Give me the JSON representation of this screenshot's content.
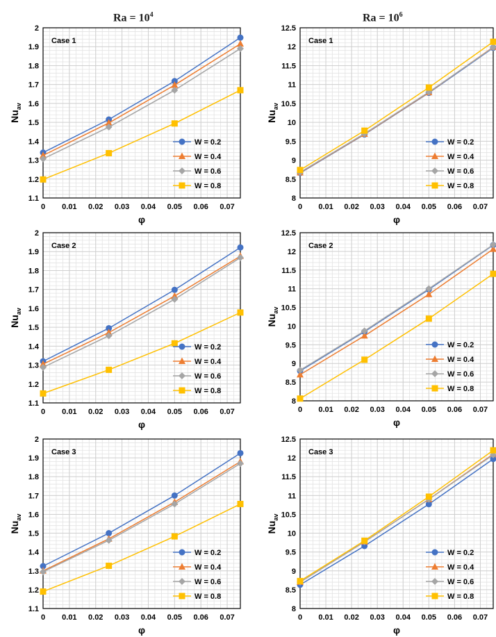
{
  "titles": {
    "left": {
      "base": "Ra = 10",
      "exp": "4"
    },
    "right": {
      "base": "Ra = 10",
      "exp": "6"
    }
  },
  "colors": {
    "W = 0.2": "#4472C4",
    "W = 0.4": "#ED7D31",
    "W = 0.6": "#A5A5A5",
    "W = 0.8": "#FFC000"
  },
  "markers": {
    "W = 0.2": "circle",
    "W = 0.4": "triangle",
    "W = 0.6": "diamond",
    "W = 0.8": "square"
  },
  "chart_data": [
    {
      "type": "line",
      "case": "Case 1",
      "ra": "Ra = 10^4",
      "xlabel": "φ",
      "ylabel": {
        "base": "Nu",
        "sub": "av"
      },
      "xlim": [
        0,
        0.075
      ],
      "ylim": [
        1.1,
        2.0
      ],
      "xticks": [
        "0",
        "0.01",
        "0.02",
        "0.03",
        "0.04",
        "0.05",
        "0.06",
        "0.07"
      ],
      "yticks": [
        "1.1",
        "1.2",
        "1.3",
        "1.4",
        "1.5",
        "1.6",
        "1.7",
        "1.8",
        "1.9",
        "2"
      ],
      "legend": "bottom-right",
      "grid": true,
      "x": [
        0,
        0.025,
        0.05,
        0.075
      ],
      "series": [
        {
          "name": "W = 0.2",
          "values": [
            1.34,
            1.515,
            1.718,
            1.948
          ]
        },
        {
          "name": "W = 0.4",
          "values": [
            1.325,
            1.497,
            1.697,
            1.915
          ]
        },
        {
          "name": "W = 0.6",
          "values": [
            1.307,
            1.475,
            1.67,
            1.89
          ]
        },
        {
          "name": "W = 0.8",
          "values": [
            1.198,
            1.337,
            1.494,
            1.67
          ]
        }
      ]
    },
    {
      "type": "line",
      "case": "Case 1",
      "ra": "Ra = 10^6",
      "xlabel": "φ",
      "ylabel": {
        "base": "Nu",
        "sub": "av"
      },
      "xlim": [
        0,
        0.075
      ],
      "ylim": [
        8,
        12.5
      ],
      "xticks": [
        "0",
        "0.01",
        "0.02",
        "0.03",
        "0.04",
        "0.05",
        "0.06",
        "0.07"
      ],
      "yticks": [
        "8",
        "8.5",
        "9",
        "9.5",
        "10",
        "10.5",
        "11",
        "11.5",
        "12",
        "12.5"
      ],
      "legend": "bottom-right",
      "grid": true,
      "x": [
        0,
        0.025,
        0.05,
        0.075
      ],
      "series": [
        {
          "name": "W = 0.2",
          "values": [
            8.66,
            9.68,
            10.78,
            11.97
          ]
        },
        {
          "name": "W = 0.4",
          "values": [
            8.67,
            9.69,
            10.79,
            11.99
          ]
        },
        {
          "name": "W = 0.6",
          "values": [
            8.68,
            9.7,
            10.8,
            11.98
          ]
        },
        {
          "name": "W = 0.8",
          "values": [
            8.74,
            9.78,
            10.92,
            12.13
          ]
        }
      ]
    },
    {
      "type": "line",
      "case": "Case 2",
      "ra": "Ra = 10^4",
      "xlabel": "φ",
      "ylabel": {
        "base": "Nu",
        "sub": "av"
      },
      "xlim": [
        0,
        0.075
      ],
      "ylim": [
        1.1,
        2.0
      ],
      "xticks": [
        "0",
        "0.01",
        "0.02",
        "0.03",
        "0.04",
        "0.05",
        "0.06",
        "0.07"
      ],
      "yticks": [
        "1.1",
        "1.2",
        "1.3",
        "1.4",
        "1.5",
        "1.6",
        "1.7",
        "1.8",
        "1.9",
        "2"
      ],
      "legend": "bottom-right",
      "grid": true,
      "x": [
        0,
        0.025,
        0.05,
        0.075
      ],
      "series": [
        {
          "name": "W = 0.2",
          "values": [
            1.32,
            1.495,
            1.698,
            1.922
          ]
        },
        {
          "name": "W = 0.4",
          "values": [
            1.305,
            1.472,
            1.665,
            1.876
          ]
        },
        {
          "name": "W = 0.6",
          "values": [
            1.288,
            1.455,
            1.648,
            1.868
          ]
        },
        {
          "name": "W = 0.8",
          "values": [
            1.15,
            1.275,
            1.415,
            1.578
          ]
        }
      ]
    },
    {
      "type": "line",
      "case": "Case 2",
      "ra": "Ra = 10^6",
      "xlabel": "φ",
      "ylabel": {
        "base": "Nu",
        "sub": "av"
      },
      "xlim": [
        0,
        0.075
      ],
      "ylim": [
        8,
        12.5
      ],
      "xticks": [
        "0",
        "0.01",
        "0.02",
        "0.03",
        "0.04",
        "0.05",
        "0.06",
        "0.07"
      ],
      "yticks": [
        "8",
        "8.5",
        "9",
        "9.5",
        "10",
        "10.5",
        "11",
        "11.5",
        "12",
        "12.5"
      ],
      "legend": "bottom-right",
      "grid": true,
      "x": [
        0,
        0.025,
        0.05,
        0.075
      ],
      "series": [
        {
          "name": "W = 0.2",
          "values": [
            8.8,
            9.85,
            10.98,
            12.17
          ]
        },
        {
          "name": "W = 0.4",
          "values": [
            8.7,
            9.74,
            10.85,
            12.06
          ]
        },
        {
          "name": "W = 0.6",
          "values": [
            8.82,
            9.87,
            11.0,
            12.18
          ]
        },
        {
          "name": "W = 0.8",
          "values": [
            8.06,
            9.1,
            10.2,
            11.4
          ]
        }
      ]
    },
    {
      "type": "line",
      "case": "Case 3",
      "ra": "Ra = 10^4",
      "xlabel": "φ",
      "ylabel": {
        "base": "Nu",
        "sub": "av"
      },
      "xlim": [
        0,
        0.075
      ],
      "ylim": [
        1.1,
        2.0
      ],
      "xticks": [
        "0",
        "0.01",
        "0.02",
        "0.03",
        "0.04",
        "0.05",
        "0.06",
        "0.07"
      ],
      "yticks": [
        "1.1",
        "1.2",
        "1.3",
        "1.4",
        "1.5",
        "1.6",
        "1.7",
        "1.8",
        "1.9",
        "2"
      ],
      "legend": "bottom-right",
      "grid": true,
      "x": [
        0,
        0.025,
        0.05,
        0.075
      ],
      "series": [
        {
          "name": "W = 0.2",
          "values": [
            1.325,
            1.5,
            1.7,
            1.925
          ]
        },
        {
          "name": "W = 0.4",
          "values": [
            1.3,
            1.47,
            1.665,
            1.88
          ]
        },
        {
          "name": "W = 0.6",
          "values": [
            1.295,
            1.462,
            1.655,
            1.87
          ]
        },
        {
          "name": "W = 0.8",
          "values": [
            1.19,
            1.327,
            1.483,
            1.655
          ]
        }
      ]
    },
    {
      "type": "line",
      "case": "Case 3",
      "ra": "Ra = 10^6",
      "xlabel": "φ",
      "ylabel": {
        "base": "Nu",
        "sub": "av"
      },
      "xlim": [
        0,
        0.075
      ],
      "ylim": [
        8,
        12.5
      ],
      "xticks": [
        "0",
        "0.01",
        "0.02",
        "0.03",
        "0.04",
        "0.05",
        "0.06",
        "0.07"
      ],
      "yticks": [
        "8",
        "8.5",
        "9",
        "9.5",
        "10",
        "10.5",
        "11",
        "11.5",
        "12",
        "12.5"
      ],
      "legend": "bottom-right",
      "grid": true,
      "x": [
        0,
        0.025,
        0.05,
        0.075
      ],
      "series": [
        {
          "name": "W = 0.2",
          "values": [
            8.63,
            9.66,
            10.77,
            11.97
          ]
        },
        {
          "name": "W = 0.4",
          "values": [
            8.7,
            9.77,
            10.9,
            12.1
          ]
        },
        {
          "name": "W = 0.6",
          "values": [
            8.7,
            9.77,
            10.9,
            12.08
          ]
        },
        {
          "name": "W = 0.8",
          "values": [
            8.73,
            9.8,
            10.97,
            12.2
          ]
        }
      ]
    }
  ]
}
